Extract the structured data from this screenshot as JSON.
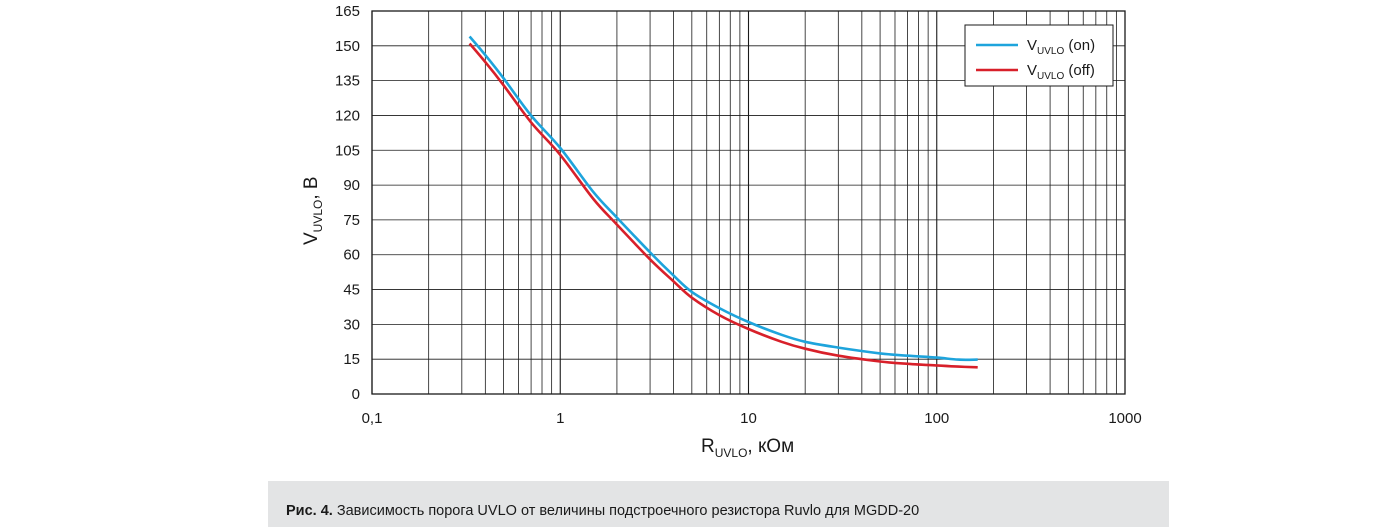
{
  "chart_data": {
    "type": "line",
    "xscale": "log",
    "xlim": [
      0.1,
      1000
    ],
    "ylim": [
      0,
      165
    ],
    "xticks": [
      "0,1",
      "1",
      "10",
      "100",
      "1000"
    ],
    "yticks": [
      "0",
      "15",
      "30",
      "45",
      "60",
      "75",
      "90",
      "105",
      "120",
      "135",
      "150",
      "165"
    ],
    "ytick_values": [
      0,
      15,
      30,
      45,
      60,
      75,
      90,
      105,
      120,
      135,
      150,
      165
    ],
    "xlabel": {
      "main": "R",
      "sub": "UVLO",
      "rest": ", кОм"
    },
    "ylabel": {
      "main": "V",
      "sub": "UVLO",
      "rest": ", В"
    },
    "grid": true,
    "legend_position": "top-right",
    "series": [
      {
        "legend": {
          "main": "V",
          "sub": "UVLO",
          "rest": " (on)"
        },
        "color": "#1ea4dc",
        "points": [
          [
            0.33,
            154
          ],
          [
            0.4,
            146
          ],
          [
            0.5,
            136
          ],
          [
            0.7,
            120
          ],
          [
            1.0,
            106
          ],
          [
            1.5,
            87
          ],
          [
            2.0,
            76
          ],
          [
            3.0,
            61
          ],
          [
            4.0,
            51
          ],
          [
            5.0,
            44
          ],
          [
            7.0,
            37
          ],
          [
            10.0,
            31
          ],
          [
            15.0,
            25.5
          ],
          [
            20.0,
            22.5
          ],
          [
            30.0,
            20
          ],
          [
            50.0,
            17.5
          ],
          [
            70.0,
            16.5
          ],
          [
            100.0,
            15.7
          ],
          [
            130.0,
            14.8
          ],
          [
            165.0,
            14.8
          ]
        ]
      },
      {
        "legend": {
          "main": "V",
          "sub": "UVLO",
          "rest": " (off)"
        },
        "color": "#d8202a",
        "points": [
          [
            0.33,
            151
          ],
          [
            0.4,
            143
          ],
          [
            0.5,
            133
          ],
          [
            0.7,
            117
          ],
          [
            1.0,
            103
          ],
          [
            1.5,
            84
          ],
          [
            2.0,
            73
          ],
          [
            3.0,
            58
          ],
          [
            4.0,
            48.5
          ],
          [
            5.0,
            41.5
          ],
          [
            7.0,
            34
          ],
          [
            10.0,
            28
          ],
          [
            15.0,
            22.5
          ],
          [
            20.0,
            19.5
          ],
          [
            30.0,
            16.5
          ],
          [
            50.0,
            14
          ],
          [
            70.0,
            13
          ],
          [
            100.0,
            12.3
          ],
          [
            130.0,
            11.8
          ],
          [
            165.0,
            11.5
          ]
        ]
      }
    ]
  },
  "caption": {
    "prefix": "Рис. 4.",
    "text": " Зависимость порога UVLO от величины подстроечного резистора Ruvlo для MGDD-20"
  }
}
